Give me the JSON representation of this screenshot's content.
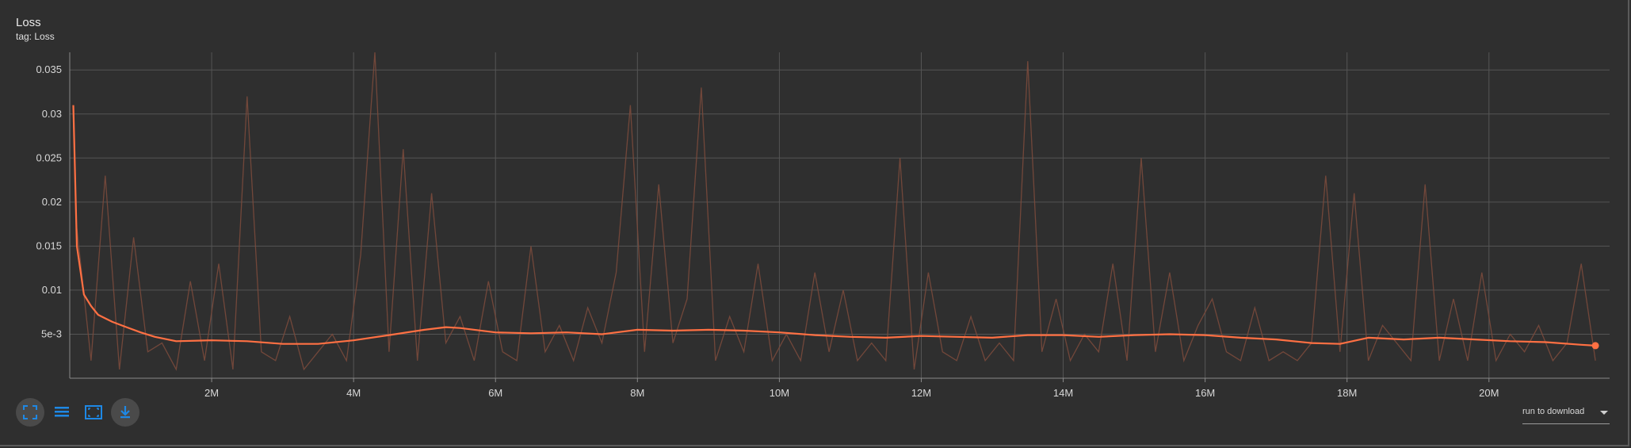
{
  "header": {
    "title": "Loss",
    "subtitle": "tag: Loss"
  },
  "chart_data": {
    "type": "line",
    "title": "Loss",
    "subtitle": "tag: Loss",
    "xlabel": "",
    "ylabel": "",
    "xlim": [
      0,
      21700000
    ],
    "ylim": [
      0,
      0.037
    ],
    "x_ticks": [
      2000000,
      4000000,
      6000000,
      8000000,
      10000000,
      12000000,
      14000000,
      16000000,
      18000000,
      20000000
    ],
    "x_tick_labels": [
      "2M",
      "4M",
      "6M",
      "8M",
      "10M",
      "12M",
      "14M",
      "16M",
      "18M",
      "20M"
    ],
    "y_ticks": [
      0.005,
      0.01,
      0.015,
      0.02,
      0.025,
      0.03,
      0.035
    ],
    "y_tick_labels": [
      "5e-3",
      "0.01",
      "0.015",
      "0.02",
      "0.025",
      "0.03",
      "0.035"
    ],
    "grid": true,
    "colors": {
      "smoothed": "#ff7043",
      "raw": "#7a4a3c",
      "grid": "#555555",
      "axis": "#8a8a8a",
      "tick_text": "#d8d8d8"
    },
    "series": [
      {
        "role": "smoothed",
        "x": [
          50000,
          100000,
          200000,
          300000,
          400000,
          600000,
          800000,
          1000000,
          1200000,
          1500000,
          2000000,
          2500000,
          3000000,
          3500000,
          4000000,
          4500000,
          5000000,
          5300000,
          5500000,
          6000000,
          6500000,
          7000000,
          7500000,
          8000000,
          8500000,
          9000000,
          9500000,
          10000000,
          10500000,
          11000000,
          11500000,
          12000000,
          12500000,
          13000000,
          13500000,
          14000000,
          14500000,
          15000000,
          15500000,
          16000000,
          16500000,
          17000000,
          17500000,
          17900000,
          18300000,
          18800000,
          19300000,
          19800000,
          20300000,
          20800000,
          21300000,
          21500000
        ],
        "y": [
          0.031,
          0.015,
          0.0095,
          0.0082,
          0.0072,
          0.0064,
          0.0058,
          0.0052,
          0.0047,
          0.0042,
          0.0043,
          0.0042,
          0.0039,
          0.0039,
          0.0043,
          0.0049,
          0.0055,
          0.0058,
          0.0057,
          0.0052,
          0.0051,
          0.0052,
          0.005,
          0.0055,
          0.0054,
          0.0055,
          0.0054,
          0.0052,
          0.0049,
          0.0047,
          0.0046,
          0.0048,
          0.0047,
          0.0046,
          0.0049,
          0.0049,
          0.0047,
          0.0049,
          0.005,
          0.0049,
          0.0046,
          0.0044,
          0.004,
          0.0039,
          0.0046,
          0.0044,
          0.0046,
          0.0044,
          0.0042,
          0.0041,
          0.0038,
          0.0037
        ]
      },
      {
        "role": "raw",
        "x": [
          100000,
          300000,
          500000,
          700000,
          900000,
          1100000,
          1300000,
          1500000,
          1700000,
          1900000,
          2100000,
          2300000,
          2500000,
          2700000,
          2900000,
          3100000,
          3300000,
          3500000,
          3700000,
          3900000,
          4100000,
          4300000,
          4500000,
          4700000,
          4900000,
          5100000,
          5300000,
          5500000,
          5700000,
          5900000,
          6100000,
          6300000,
          6500000,
          6700000,
          6900000,
          7100000,
          7300000,
          7500000,
          7700000,
          7900000,
          8100000,
          8300000,
          8500000,
          8700000,
          8900000,
          9100000,
          9300000,
          9500000,
          9700000,
          9900000,
          10100000,
          10300000,
          10500000,
          10700000,
          10900000,
          11100000,
          11300000,
          11500000,
          11700000,
          11900000,
          12100000,
          12300000,
          12500000,
          12700000,
          12900000,
          13100000,
          13300000,
          13500000,
          13700000,
          13900000,
          14100000,
          14300000,
          14500000,
          14700000,
          14900000,
          15100000,
          15300000,
          15500000,
          15700000,
          15900000,
          16100000,
          16300000,
          16500000,
          16700000,
          16900000,
          17100000,
          17300000,
          17500000,
          17700000,
          17900000,
          18100000,
          18300000,
          18500000,
          18700000,
          18900000,
          19100000,
          19300000,
          19500000,
          19700000,
          19900000,
          20100000,
          20300000,
          20500000,
          20700000,
          20900000,
          21100000,
          21300000,
          21500000
        ],
        "y": [
          0.017,
          0.002,
          0.023,
          0.001,
          0.016,
          0.003,
          0.004,
          0.001,
          0.011,
          0.002,
          0.013,
          0.001,
          0.032,
          0.003,
          0.002,
          0.007,
          0.001,
          0.003,
          0.005,
          0.002,
          0.014,
          0.037,
          0.003,
          0.026,
          0.002,
          0.021,
          0.004,
          0.007,
          0.002,
          0.011,
          0.003,
          0.002,
          0.015,
          0.003,
          0.006,
          0.002,
          0.008,
          0.004,
          0.012,
          0.031,
          0.003,
          0.022,
          0.004,
          0.009,
          0.033,
          0.002,
          0.007,
          0.003,
          0.013,
          0.002,
          0.005,
          0.002,
          0.012,
          0.003,
          0.01,
          0.002,
          0.004,
          0.002,
          0.025,
          0.001,
          0.012,
          0.003,
          0.002,
          0.007,
          0.002,
          0.004,
          0.002,
          0.036,
          0.003,
          0.009,
          0.002,
          0.005,
          0.003,
          0.013,
          0.002,
          0.025,
          0.003,
          0.012,
          0.002,
          0.006,
          0.009,
          0.003,
          0.002,
          0.008,
          0.002,
          0.003,
          0.002,
          0.004,
          0.023,
          0.003,
          0.021,
          0.002,
          0.006,
          0.004,
          0.002,
          0.022,
          0.002,
          0.009,
          0.002,
          0.012,
          0.002,
          0.005,
          0.003,
          0.006,
          0.002,
          0.004,
          0.013,
          0.002
        ]
      }
    ]
  },
  "toolbar": {
    "icons": [
      "fit-domain-icon",
      "toggle-log-scale-icon",
      "expand-icon",
      "download-icon"
    ],
    "download_label": "run to download"
  }
}
